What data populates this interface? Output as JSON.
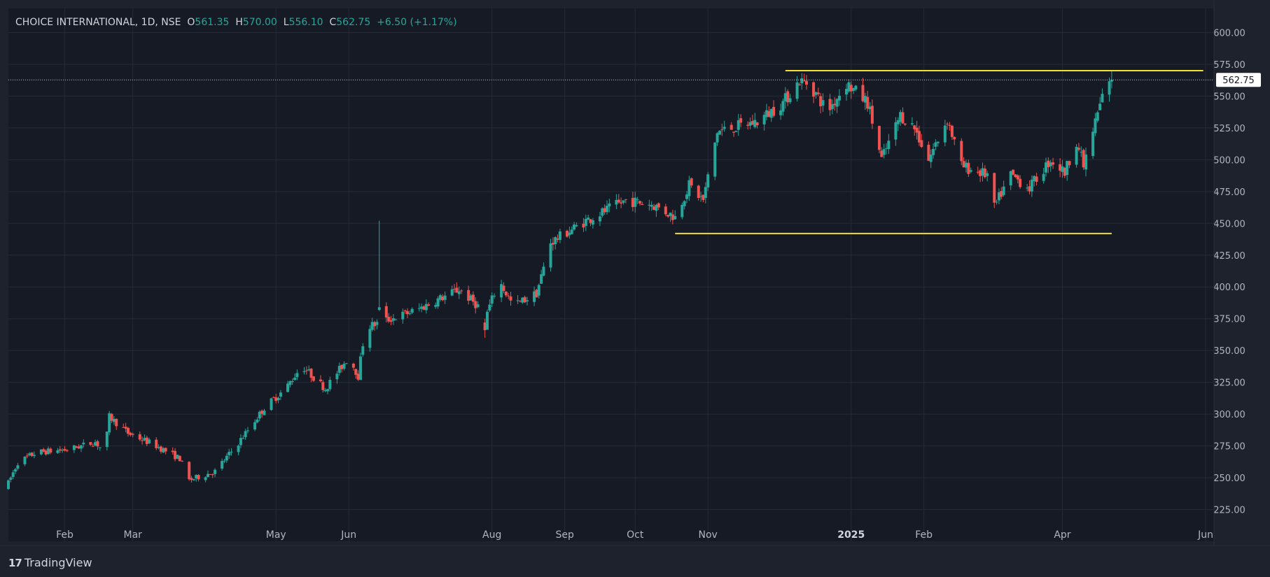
{
  "header": {
    "symbol": "CHOICE INTERNATIONAL, 1D, NSE",
    "open_label": "O",
    "open": "561.35",
    "high_label": "H",
    "high": "570.00",
    "low_label": "L",
    "low": "556.10",
    "close_label": "C",
    "close": "562.75",
    "change": "+6.50 (+1.17%)"
  },
  "branding": {
    "logo": "17",
    "name": "TradingView"
  },
  "colors": {
    "background": "#1e222d",
    "plot": "#161a25",
    "up": "#26a69a",
    "down": "#ef5350",
    "hline": "#f0e030",
    "grid": "#252a36",
    "text": "#b2b5be"
  },
  "chart_data": {
    "type": "candlestick",
    "ylim": [
      200,
      615
    ],
    "y_ticks": [
      225,
      250,
      275,
      300,
      325,
      350,
      375,
      400,
      425,
      450,
      475,
      500,
      525,
      550,
      575,
      600
    ],
    "y_tick_labels": [
      "225.00",
      "250.00",
      "275.00",
      "300.00",
      "325.00",
      "350.00",
      "375.00",
      "400.00",
      "425.00",
      "450.00",
      "475.00",
      "500.00",
      "525.00",
      "550.00",
      "575.00",
      "600.00"
    ],
    "x_ticks": [
      {
        "date": "2024-02-01",
        "label": "Feb",
        "bold": false
      },
      {
        "date": "2024-03-01",
        "label": "Mar",
        "bold": false
      },
      {
        "date": "2024-05-01",
        "label": "May",
        "bold": false
      },
      {
        "date": "2024-06-01",
        "label": "Jun",
        "bold": false
      },
      {
        "date": "2024-08-01",
        "label": "Aug",
        "bold": false
      },
      {
        "date": "2024-09-01",
        "label": "Sep",
        "bold": false
      },
      {
        "date": "2024-10-01",
        "label": "Oct",
        "bold": false
      },
      {
        "date": "2024-11-01",
        "label": "Nov",
        "bold": false
      },
      {
        "date": "2025-01-01",
        "label": "2025",
        "bold": true
      },
      {
        "date": "2025-02-01",
        "label": "Feb",
        "bold": false
      },
      {
        "date": "2025-04-01",
        "label": "Apr",
        "bold": false
      },
      {
        "date": "2025-06-01",
        "label": "Jun",
        "bold": false
      }
    ],
    "price_label": "562.75",
    "last_price": 562.75,
    "horizontal_lines": [
      {
        "name": "resistance",
        "price": 570,
        "from": "2024-12-04",
        "to": "2025-05-31"
      },
      {
        "name": "support",
        "price": 442,
        "from": "2024-10-18",
        "to": "2025-04-22"
      }
    ],
    "price_path": [
      [
        "2024-01-07",
        242
      ],
      [
        "2024-01-12",
        262
      ],
      [
        "2024-01-20",
        270
      ],
      [
        "2024-02-02",
        272
      ],
      [
        "2024-02-14",
        278
      ],
      [
        "2024-02-18",
        270
      ],
      [
        "2024-02-20",
        298
      ],
      [
        "2024-02-28",
        285
      ],
      [
        "2024-03-10",
        276
      ],
      [
        "2024-03-21",
        265
      ],
      [
        "2024-03-25",
        248
      ],
      [
        "2024-04-05",
        255
      ],
      [
        "2024-04-14",
        275
      ],
      [
        "2024-04-26",
        305
      ],
      [
        "2024-05-05",
        320
      ],
      [
        "2024-05-12",
        338
      ],
      [
        "2024-05-22",
        320
      ],
      [
        "2024-06-01",
        345
      ],
      [
        "2024-06-05",
        330
      ],
      [
        "2024-06-08",
        368
      ],
      [
        "2024-06-30",
        382
      ],
      [
        "2024-07-18",
        398
      ],
      [
        "2024-07-26",
        385
      ],
      [
        "2024-07-28",
        370
      ],
      [
        "2024-08-04",
        405
      ],
      [
        "2024-08-10",
        385
      ],
      [
        "2024-08-20",
        395
      ],
      [
        "2024-08-26",
        435
      ],
      [
        "2024-09-10",
        452
      ],
      [
        "2024-09-27",
        468
      ],
      [
        "2024-10-08",
        465
      ],
      [
        "2024-10-18",
        455
      ],
      [
        "2024-10-24",
        480
      ],
      [
        "2024-10-30",
        468
      ],
      [
        "2024-11-05",
        522
      ],
      [
        "2024-11-22",
        530
      ],
      [
        "2024-12-03",
        545
      ],
      [
        "2024-12-10",
        562
      ],
      [
        "2024-12-14",
        560
      ],
      [
        "2024-12-22",
        538
      ],
      [
        "2024-12-30",
        560
      ],
      [
        "2025-01-08",
        545
      ],
      [
        "2025-01-14",
        500
      ],
      [
        "2025-01-22",
        535
      ],
      [
        "2025-01-28",
        525
      ],
      [
        "2025-02-03",
        500
      ],
      [
        "2025-02-11",
        532
      ],
      [
        "2025-02-17",
        495
      ],
      [
        "2025-02-28",
        488
      ],
      [
        "2025-03-03",
        462
      ],
      [
        "2025-03-05",
        470
      ],
      [
        "2025-03-10",
        488
      ],
      [
        "2025-03-18",
        478
      ],
      [
        "2025-03-27",
        500
      ],
      [
        "2025-04-02",
        490
      ],
      [
        "2025-04-07",
        515
      ],
      [
        "2025-04-10",
        495
      ],
      [
        "2025-04-18",
        550
      ],
      [
        "2025-04-22",
        562
      ]
    ],
    "outliers": [
      {
        "date": "2024-06-14",
        "high": 452,
        "low": 381,
        "open": 382,
        "close": 384
      },
      {
        "date": "2024-07-29",
        "high": 375,
        "low": 360,
        "open": 372,
        "close": 366
      },
      {
        "date": "2025-03-02",
        "high": 472,
        "low": 440,
        "open": 470,
        "close": 465
      }
    ]
  }
}
